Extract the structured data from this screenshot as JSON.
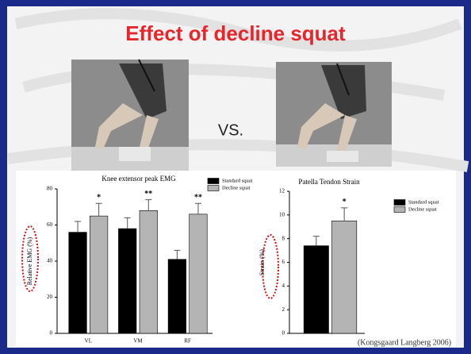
{
  "slide": {
    "title": "Effect of decline squat",
    "vs": "VS.",
    "citation": "(Kongsgaard Langberg 2006)"
  },
  "chart_data": [
    {
      "type": "bar",
      "title": "Knee extensor peak EMG",
      "ylabel": "Relative EMG (%)",
      "categories": [
        "VL",
        "VM",
        "RF"
      ],
      "series": [
        {
          "name": "Standard squat",
          "color": "#000000",
          "values": [
            56,
            58,
            41
          ],
          "errors": [
            6,
            6,
            5
          ]
        },
        {
          "name": "Decline squat",
          "color": "#b4b4b4",
          "values": [
            65,
            68,
            66
          ],
          "errors": [
            7,
            6,
            6
          ],
          "significance": [
            "*",
            "**",
            "**"
          ]
        }
      ],
      "ylim": [
        0,
        80
      ],
      "yticks": [
        0,
        20,
        40,
        60,
        80
      ]
    },
    {
      "type": "bar",
      "title": "Patella Tendon Strain",
      "ylabel": "Strain (%)",
      "categories": [
        null
      ],
      "series": [
        {
          "name": "Standard squat",
          "color": "#000000",
          "values": [
            7.4
          ],
          "errors": [
            0.8
          ]
        },
        {
          "name": "Decline squat",
          "color": "#b4b4b4",
          "values": [
            9.5
          ],
          "errors": [
            1.1
          ],
          "significance": [
            "*"
          ]
        }
      ],
      "ylim": [
        0,
        12
      ],
      "yticks": [
        0,
        2,
        4,
        6,
        8,
        10,
        12
      ]
    }
  ]
}
